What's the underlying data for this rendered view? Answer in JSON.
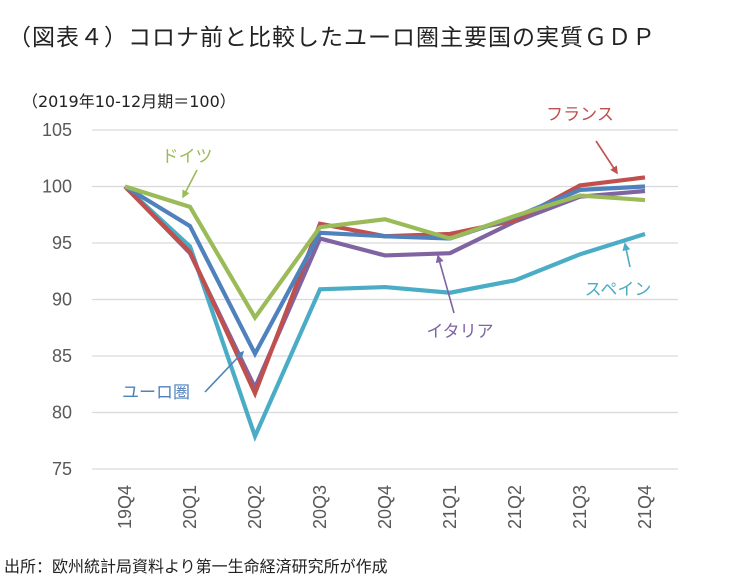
{
  "title": "（図表４）コロナ前と比較したユーロ圏主要国の実質ＧＤＰ",
  "subtitle": "（2019年10-12月期＝100）",
  "source": "出所：欧州統計局資料より第一生命経済研究所が作成",
  "chart_data": {
    "type": "line",
    "title": "（図表４）コロナ前と比較したユーロ圏主要国の実質ＧＤＰ",
    "ylabel": "（2019年10-12月期＝100）",
    "xlabel": "",
    "ylim": [
      75,
      105
    ],
    "yticks": [
      "105",
      "100",
      "95",
      "90",
      "85",
      "80",
      "75"
    ],
    "categories": [
      "19Q4",
      "20Q1",
      "20Q2",
      "20Q3",
      "20Q4",
      "21Q1",
      "21Q2",
      "21Q3",
      "21Q4"
    ],
    "grid": true,
    "legend": "inline-annotations",
    "series": [
      {
        "name": "ドイツ",
        "color": "#9BBB59",
        "values": [
          100,
          98.2,
          88.4,
          96.4,
          97.1,
          95.4,
          97.4,
          99.2,
          98.8
        ]
      },
      {
        "name": "ユーロ圏",
        "color": "#4F81BD",
        "values": [
          100,
          96.5,
          85.2,
          95.9,
          95.6,
          95.4,
          97.3,
          99.7,
          100.0
        ]
      },
      {
        "name": "フランス",
        "color": "#C0504D",
        "values": [
          100,
          94.2,
          81.7,
          96.7,
          95.6,
          95.8,
          97.0,
          100.1,
          100.8
        ]
      },
      {
        "name": "イタリア",
        "color": "#8064A2",
        "values": [
          100,
          94.1,
          82.2,
          95.4,
          93.9,
          94.1,
          96.9,
          99.1,
          99.6
        ]
      },
      {
        "name": "スペイン",
        "color": "#4BACC6",
        "values": [
          100,
          94.7,
          77.9,
          90.9,
          91.1,
          90.6,
          91.7,
          94.0,
          95.8
        ]
      }
    ]
  }
}
